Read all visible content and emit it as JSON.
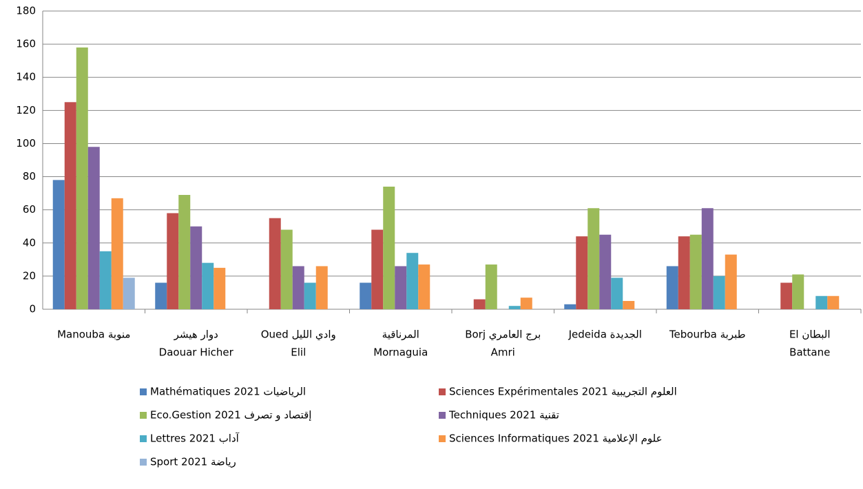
{
  "chart_data": {
    "type": "bar",
    "categories": [
      [
        "Manouba منوبة"
      ],
      [
        "دوار هيشر",
        "Daouar Hicher"
      ],
      [
        "Oued وادي الليل",
        "Elil"
      ],
      [
        "المرناقية",
        "Mornaguia"
      ],
      [
        "Borj برج العامري",
        "Amri"
      ],
      [
        "Jedeida الجديدة"
      ],
      [
        "Tebourba طبربة"
      ],
      [
        "El البطان",
        "Battane"
      ]
    ],
    "series": [
      {
        "name": "Mathématiques 2021 الرياضيات",
        "color": "#4f81bd",
        "values": [
          78,
          16,
          null,
          16,
          null,
          3,
          26,
          null
        ]
      },
      {
        "name": "Sciences Expérimentales 2021 العلوم التجريبية",
        "color": "#c0504d",
        "values": [
          125,
          58,
          55,
          48,
          6,
          44,
          44,
          16
        ]
      },
      {
        "name": "Eco.Gestion 2021 إقتصاد و تصرف",
        "color": "#9bbb59",
        "values": [
          158,
          69,
          48,
          74,
          27,
          61,
          45,
          21
        ]
      },
      {
        "name": "Techniques 2021 تقنية",
        "color": "#8064a2",
        "values": [
          98,
          50,
          26,
          26,
          null,
          45,
          61,
          null
        ]
      },
      {
        "name": "Lettres 2021 آداب",
        "color": "#4bacc6",
        "values": [
          35,
          28,
          16,
          34,
          2,
          19,
          20,
          8
        ]
      },
      {
        "name": "Sciences Informatiques 2021 علوم الإعلامية",
        "color": "#f79646",
        "values": [
          67,
          25,
          26,
          27,
          7,
          5,
          33,
          8
        ]
      },
      {
        "name": "Sport 2021 رياضة",
        "color": "#95b3d7",
        "values": [
          19,
          null,
          null,
          null,
          null,
          null,
          null,
          null
        ]
      }
    ],
    "ylim": [
      0,
      180
    ],
    "yticks": [
      0,
      20,
      40,
      60,
      80,
      100,
      120,
      140,
      160,
      180
    ],
    "grid": true,
    "legend": "bottom"
  }
}
